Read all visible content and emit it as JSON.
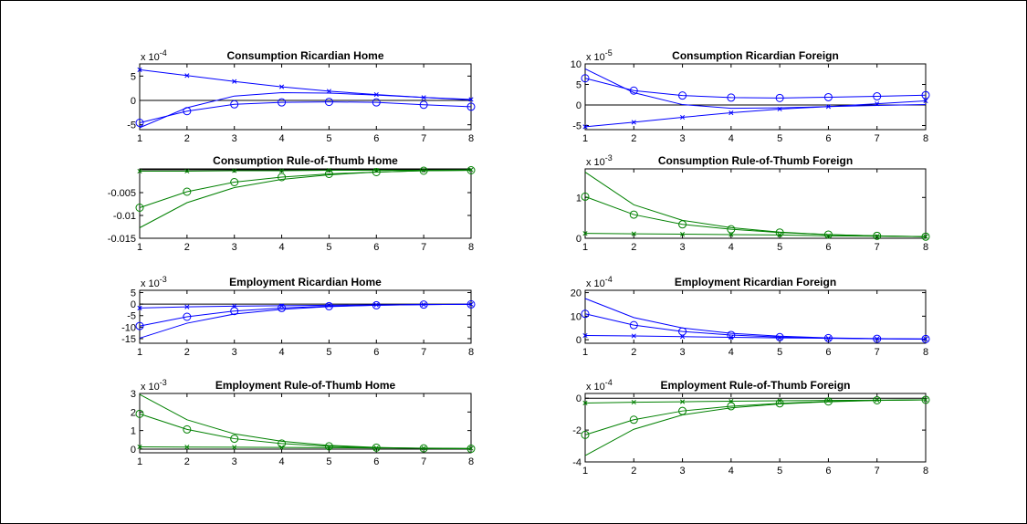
{
  "chart_data": [
    {
      "type": "line",
      "title": "Consumption Ricardian Home",
      "multiplier": {
        "base": "x 10",
        "exp": "-4"
      },
      "xlim": [
        1,
        8
      ],
      "ylim": [
        -6,
        7.5
      ],
      "xticks": [
        1,
        2,
        3,
        4,
        5,
        6,
        7,
        8
      ],
      "yticks": [
        -5,
        0,
        5
      ],
      "ytick_labels": [
        "-5",
        "0",
        "5"
      ],
      "color": "#0000ff",
      "zero_line": true,
      "x": [
        1,
        2,
        3,
        4,
        5,
        6,
        7,
        8
      ],
      "series": [
        {
          "marker": "x",
          "values": [
            6.3,
            5.1,
            3.9,
            2.8,
            1.9,
            1.2,
            0.6,
            0.2
          ]
        },
        {
          "marker": "o",
          "values": [
            -4.6,
            -2.2,
            -0.8,
            -0.4,
            -0.3,
            -0.4,
            -0.9,
            -1.3
          ]
        },
        {
          "marker": "none",
          "values": [
            -5.6,
            -1.5,
            0.9,
            1.6,
            1.5,
            1.1,
            0.6,
            0.1
          ]
        }
      ]
    },
    {
      "type": "line",
      "title": "Consumption Ricardian Foreign",
      "multiplier": {
        "base": "x 10",
        "exp": "-5"
      },
      "xlim": [
        1,
        8
      ],
      "ylim": [
        -6,
        10
      ],
      "xticks": [
        1,
        2,
        3,
        4,
        5,
        6,
        7,
        8
      ],
      "yticks": [
        -5,
        0,
        5,
        10
      ],
      "ytick_labels": [
        "-5",
        "0",
        "5",
        "10"
      ],
      "color": "#0000ff",
      "zero_line": true,
      "x": [
        1,
        2,
        3,
        4,
        5,
        6,
        7,
        8
      ],
      "series": [
        {
          "marker": "x",
          "values": [
            -5.3,
            -4.2,
            -3.0,
            -1.9,
            -1.0,
            -0.4,
            0.3,
            1.0
          ]
        },
        {
          "marker": "o",
          "values": [
            6.5,
            3.5,
            2.3,
            1.8,
            1.7,
            1.9,
            2.1,
            2.4
          ]
        },
        {
          "marker": "none",
          "values": [
            8.8,
            3.0,
            0.1,
            -0.8,
            -0.7,
            -0.4,
            -0.1,
            0.1
          ]
        }
      ]
    },
    {
      "type": "line",
      "title": "Consumption Rule-of-Thumb Home",
      "multiplier": null,
      "xlim": [
        1,
        8
      ],
      "ylim": [
        -0.015,
        0.0002
      ],
      "xticks": [
        1,
        2,
        3,
        4,
        5,
        6,
        7,
        8
      ],
      "yticks": [
        -0.005,
        -0.01,
        -0.015
      ],
      "ytick_labels": [
        "-0.005",
        "-0.01",
        "-0.015"
      ],
      "color": "#008000",
      "zero_line": true,
      "x": [
        1,
        2,
        3,
        4,
        5,
        6,
        7,
        8
      ],
      "series": [
        {
          "marker": "x",
          "values": [
            -0.0003,
            -0.0003,
            -0.0002,
            -0.0002,
            -0.0001,
            -0.0001,
            -0.0001,
            0
          ]
        },
        {
          "marker": "o",
          "values": [
            -0.0083,
            -0.0048,
            -0.0027,
            -0.0016,
            -0.0009,
            -0.0005,
            -0.0002,
            -0.0001
          ]
        },
        {
          "marker": "none",
          "values": [
            -0.0127,
            -0.0072,
            -0.0039,
            -0.0021,
            -0.0011,
            -0.0005,
            -0.0002,
            -0.0001
          ]
        }
      ]
    },
    {
      "type": "line",
      "title": "Consumption Rule-of-Thumb Foreign",
      "multiplier": {
        "base": "x 10",
        "exp": "-3"
      },
      "xlim": [
        1,
        8
      ],
      "ylim": [
        0,
        1.7
      ],
      "xticks": [
        1,
        2,
        3,
        4,
        5,
        6,
        7,
        8
      ],
      "yticks": [
        0,
        1
      ],
      "ytick_labels": [
        "0",
        "1"
      ],
      "color": "#008000",
      "zero_line": false,
      "x": [
        1,
        2,
        3,
        4,
        5,
        6,
        7,
        8
      ],
      "series": [
        {
          "marker": "x",
          "values": [
            0.12,
            0.11,
            0.1,
            0.09,
            0.08,
            0.06,
            0.05,
            0.04
          ]
        },
        {
          "marker": "o",
          "values": [
            1.02,
            0.58,
            0.34,
            0.22,
            0.14,
            0.09,
            0.06,
            0.04
          ]
        },
        {
          "marker": "none",
          "values": [
            1.62,
            0.82,
            0.44,
            0.26,
            0.15,
            0.09,
            0.06,
            0.04
          ]
        }
      ]
    },
    {
      "type": "line",
      "title": "Employment Ricardian Home",
      "multiplier": {
        "base": "x 10",
        "exp": "-3"
      },
      "xlim": [
        1,
        8
      ],
      "ylim": [
        -17,
        6
      ],
      "xticks": [
        1,
        2,
        3,
        4,
        5,
        6,
        7,
        8
      ],
      "yticks": [
        -15,
        -10,
        -5,
        0,
        5
      ],
      "ytick_labels": [
        "-15",
        "-10",
        "-5",
        "0",
        "5"
      ],
      "color": "#0000ff",
      "zero_line": true,
      "x": [
        1,
        2,
        3,
        4,
        5,
        6,
        7,
        8
      ],
      "series": [
        {
          "marker": "x",
          "values": [
            -1.7,
            -1.2,
            -0.9,
            -0.7,
            -0.5,
            -0.3,
            -0.2,
            -0.1
          ]
        },
        {
          "marker": "o",
          "values": [
            -9.5,
            -5.5,
            -3.0,
            -1.7,
            -0.9,
            -0.5,
            -0.2,
            -0.1
          ]
        },
        {
          "marker": "none",
          "values": [
            -14.8,
            -8.3,
            -4.3,
            -2.3,
            -1.1,
            -0.5,
            -0.2,
            -0.1
          ]
        }
      ]
    },
    {
      "type": "line",
      "title": "Employment Ricardian Foreign",
      "multiplier": {
        "base": "x 10",
        "exp": "-4"
      },
      "xlim": [
        1,
        8
      ],
      "ylim": [
        -1.5,
        21
      ],
      "xticks": [
        1,
        2,
        3,
        4,
        5,
        6,
        7,
        8
      ],
      "yticks": [
        0,
        10,
        20
      ],
      "ytick_labels": [
        "0",
        "10",
        "20"
      ],
      "color": "#0000ff",
      "zero_line": false,
      "x": [
        1,
        2,
        3,
        4,
        5,
        6,
        7,
        8
      ],
      "series": [
        {
          "marker": "x",
          "values": [
            1.8,
            1.6,
            1.3,
            1.0,
            0.8,
            0.6,
            0.4,
            0.3
          ]
        },
        {
          "marker": "o",
          "values": [
            11.0,
            6.2,
            3.5,
            2.0,
            1.1,
            0.7,
            0.4,
            0.3
          ]
        },
        {
          "marker": "none",
          "values": [
            17.5,
            9.4,
            5.0,
            2.7,
            1.5,
            0.8,
            0.5,
            0.3
          ]
        }
      ]
    },
    {
      "type": "line",
      "title": "Employment Rule-of-Thumb Home",
      "multiplier": {
        "base": "x 10",
        "exp": "-3"
      },
      "xlim": [
        1,
        8
      ],
      "ylim": [
        -0.2,
        3
      ],
      "xticks": [
        1,
        2,
        3,
        4,
        5,
        6,
        7,
        8
      ],
      "yticks": [
        0,
        1,
        2,
        3
      ],
      "ytick_labels": [
        "0",
        "1",
        "2",
        "3"
      ],
      "color": "#008000",
      "zero_line": true,
      "x": [
        1,
        2,
        3,
        4,
        5,
        6,
        7,
        8
      ],
      "series": [
        {
          "marker": "x",
          "values": [
            0.12,
            0.11,
            0.1,
            0.09,
            0.08,
            0.06,
            0.05,
            0.04
          ]
        },
        {
          "marker": "o",
          "values": [
            1.9,
            1.06,
            0.56,
            0.3,
            0.15,
            0.08,
            0.04,
            0.02
          ]
        },
        {
          "marker": "none",
          "values": [
            2.95,
            1.58,
            0.82,
            0.42,
            0.2,
            0.09,
            0.04,
            0.02
          ]
        }
      ]
    },
    {
      "type": "line",
      "title": "Employment Rule-of-Thumb Foreign",
      "multiplier": {
        "base": "x 10",
        "exp": "-4"
      },
      "xlim": [
        1,
        8
      ],
      "ylim": [
        -4,
        0.3
      ],
      "xticks": [
        1,
        2,
        3,
        4,
        5,
        6,
        7,
        8
      ],
      "yticks": [
        -4,
        -2,
        0
      ],
      "ytick_labels": [
        "-4",
        "-2",
        "0"
      ],
      "color": "#008000",
      "zero_line": true,
      "x": [
        1,
        2,
        3,
        4,
        5,
        6,
        7,
        8
      ],
      "series": [
        {
          "marker": "x",
          "values": [
            -0.3,
            -0.25,
            -0.22,
            -0.19,
            -0.16,
            -0.14,
            -0.12,
            -0.1
          ]
        },
        {
          "marker": "o",
          "values": [
            -2.3,
            -1.35,
            -0.8,
            -0.5,
            -0.32,
            -0.2,
            -0.13,
            -0.1
          ]
        },
        {
          "marker": "none",
          "values": [
            -3.6,
            -1.95,
            -1.05,
            -0.6,
            -0.36,
            -0.22,
            -0.14,
            -0.1
          ]
        }
      ]
    }
  ]
}
